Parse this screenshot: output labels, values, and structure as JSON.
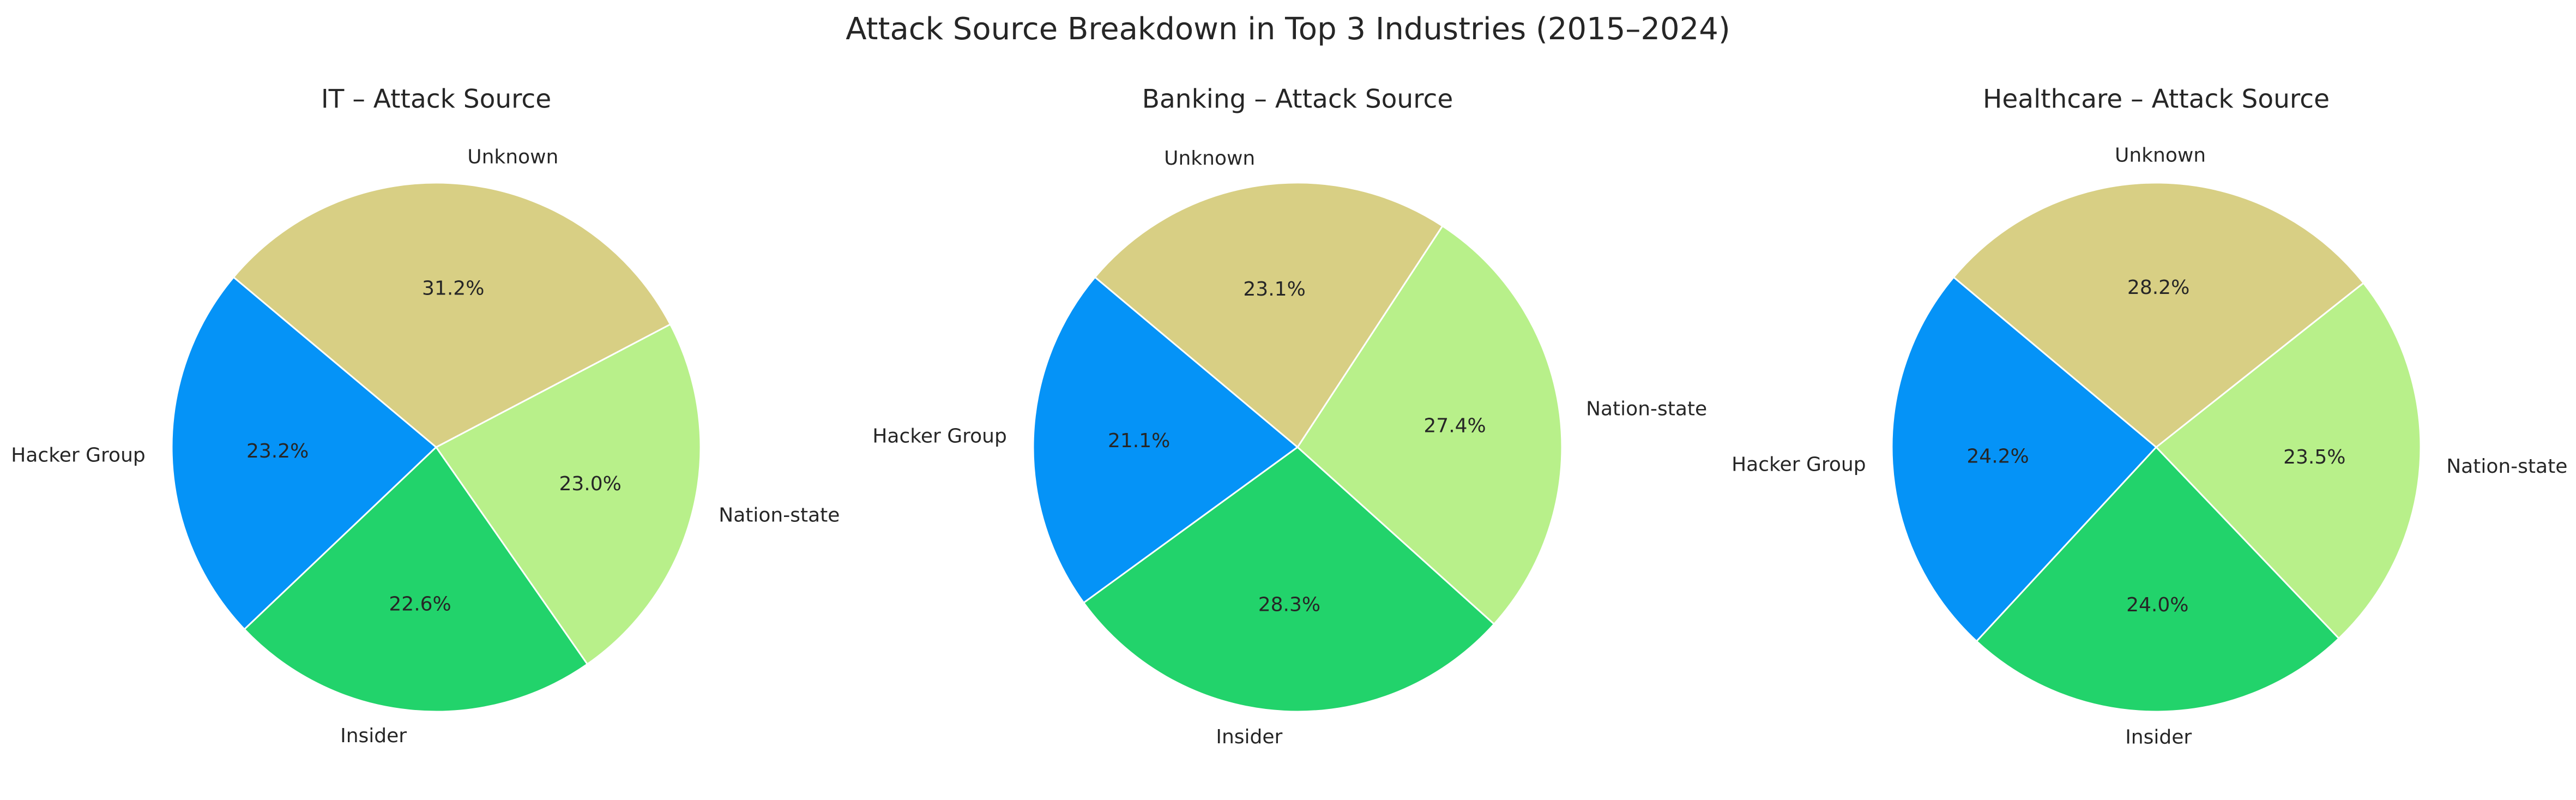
{
  "figure_title": "Attack Source Breakdown in Top 3 Industries (2015–2024)",
  "chart_data": [
    {
      "type": "pie",
      "title": "IT – Attack Source",
      "labels": [
        "Hacker Group",
        "Insider",
        "Nation-state",
        "Unknown"
      ],
      "values": [
        23.2,
        22.6,
        23.0,
        31.2
      ],
      "pct_labels": [
        "23.2%",
        "22.6%",
        "23.0%",
        "31.2%"
      ],
      "colors": [
        "#0593f7",
        "#22d36b",
        "#b8f08a",
        "#d8cf84"
      ],
      "start_angle_deg": 140,
      "direction": "counterclockwise"
    },
    {
      "type": "pie",
      "title": "Banking – Attack Source",
      "labels": [
        "Hacker Group",
        "Insider",
        "Nation-state",
        "Unknown"
      ],
      "values": [
        21.1,
        28.3,
        27.4,
        23.1
      ],
      "pct_labels": [
        "21.1%",
        "28.3%",
        "27.4%",
        "23.1%"
      ],
      "colors": [
        "#0593f7",
        "#22d36b",
        "#b8f08a",
        "#d8cf84"
      ],
      "start_angle_deg": 140,
      "direction": "counterclockwise"
    },
    {
      "type": "pie",
      "title": "Healthcare – Attack Source",
      "labels": [
        "Hacker Group",
        "Insider",
        "Nation-state",
        "Unknown"
      ],
      "values": [
        24.2,
        24.0,
        23.5,
        28.2
      ],
      "pct_labels": [
        "24.2%",
        "24.0%",
        "23.5%",
        "28.2%"
      ],
      "colors": [
        "#0593f7",
        "#22d36b",
        "#b8f08a",
        "#d8cf84"
      ],
      "start_angle_deg": 140,
      "direction": "counterclockwise"
    }
  ]
}
